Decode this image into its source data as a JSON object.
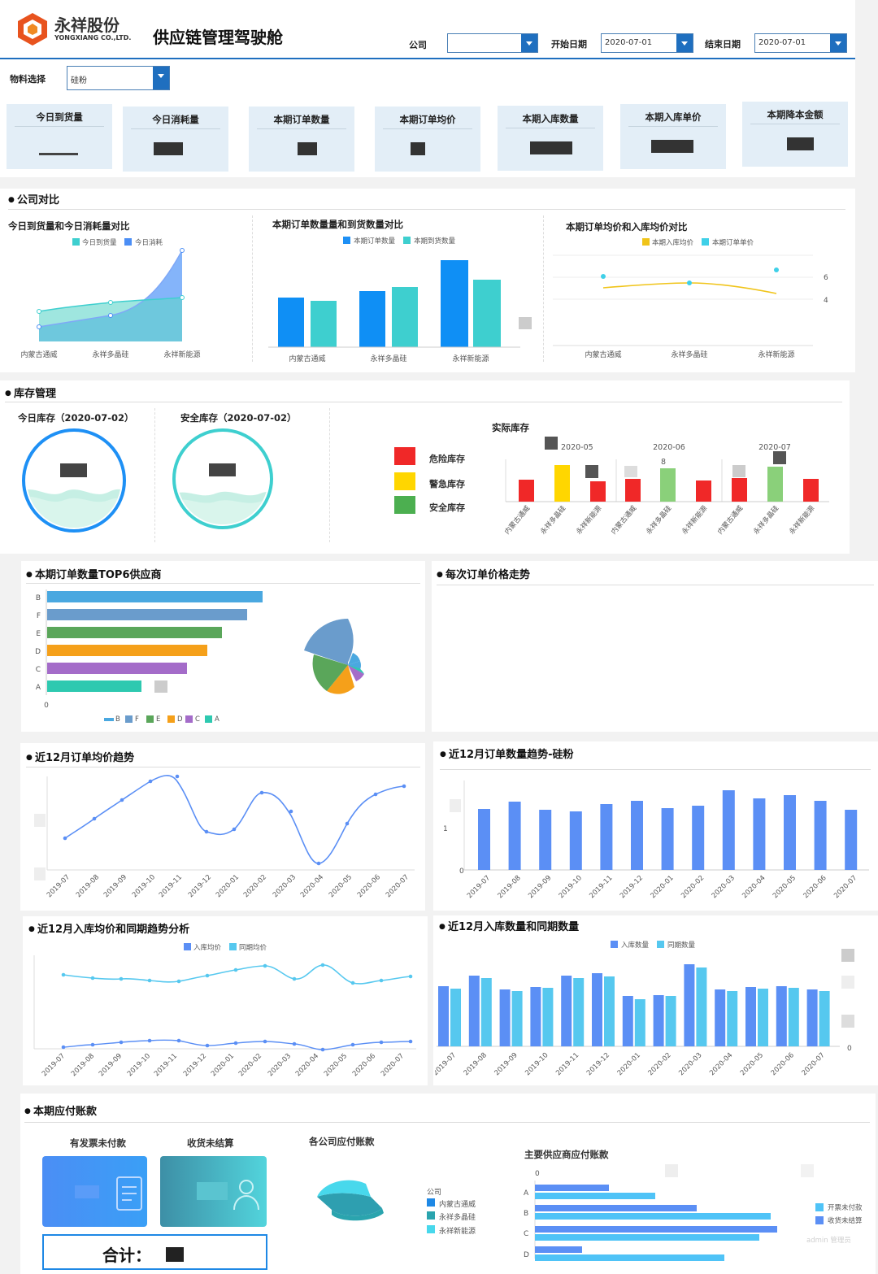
{
  "header": {
    "logo_cn": "永祥股份",
    "logo_en": "YONGXIANG CO.,LTD.",
    "title": "供应链管理驾驶舱",
    "company_label": "公司",
    "company_value": "",
    "start_label": "开始日期",
    "start_value": "2020-07-01",
    "end_label": "结束日期",
    "end_value": "2020-07-01",
    "material_label": "物料选择",
    "material_value": "硅粉"
  },
  "kpis": [
    {
      "label": "今日到货量"
    },
    {
      "label": "今日消耗量"
    },
    {
      "label": "本期订单数量"
    },
    {
      "label": "本期订单均价"
    },
    {
      "label": "本期入库数量"
    },
    {
      "label": "本期入库单价"
    },
    {
      "label": "本期降本金额"
    }
  ],
  "company_compare": {
    "title": "公司对比",
    "c1": {
      "title": "今日到货量和今日消耗量对比",
      "legend": [
        "今日到货量",
        "今日消耗"
      ]
    },
    "c2": {
      "title": "本期订单数量量和到货数量对比",
      "legend": [
        "本期订单数量",
        "本期到货数量"
      ]
    },
    "c3": {
      "title": "本期订单均价和入库均价对比",
      "legend": [
        "本期入库均价",
        "本期订单单价"
      ],
      "right_ticks": [
        "6",
        "4"
      ]
    },
    "companies": [
      "内蒙古通威",
      "永祥多晶硅",
      "永祥新能源"
    ]
  },
  "inventory": {
    "title": "库存管理",
    "today_title": "今日库存（2020-07-02）",
    "safe_title": "安全库存（2020-07-02）",
    "actual_title": "实际库存",
    "legend": [
      "危险库存",
      "警急库存",
      "安全库存"
    ],
    "months": [
      "2020-05",
      "2020-06",
      "2020-07"
    ],
    "bar_label": "8"
  },
  "top6": {
    "title": "本期订单数量TOP6供应商",
    "legend": [
      "B",
      "F",
      "E",
      "D",
      "C",
      "A"
    ],
    "axis": [
      "0"
    ]
  },
  "price_trend": {
    "title": "每次订单价格走势"
  },
  "months12": [
    "2019-07",
    "2019-08",
    "2019-09",
    "2019-10",
    "2019-11",
    "2019-12",
    "2020-01",
    "2020-02",
    "2020-03",
    "2020-04",
    "2020-05",
    "2020-06",
    "2020-07"
  ],
  "avg12": {
    "title": "近12月订单均价趋势"
  },
  "qty12": {
    "title": "近12月订单数量趋势-硅粉",
    "ticks": [
      "1",
      "0"
    ]
  },
  "in_price12": {
    "title": "近12月入库均价和同期趋势分析",
    "legend": [
      "入库均价",
      "同期均价"
    ]
  },
  "in_qty12": {
    "title": "近12月入库数量和同期数量",
    "legend": [
      "入库数量",
      "同期数量"
    ],
    "tick0": "0"
  },
  "payables": {
    "title": "本期应付账款",
    "card1": "有发票未付款",
    "card2": "收货未结算",
    "total_label": "合计：",
    "by_company_title": "各公司应付账款",
    "legend_title": "公司",
    "companies": [
      "内蒙古通威",
      "永祥多晶硅",
      "永祥新能源"
    ],
    "supplier_title": "主要供应商应付账款",
    "supplier_legend": [
      "开票未付款",
      "收货未结算"
    ],
    "suppliers": [
      "A",
      "B",
      "C",
      "D"
    ],
    "axis0": "0",
    "watermark": "admin 管理员"
  },
  "colors": {
    "blue": "#1e88e5",
    "teal": "#3ecfcf",
    "yellow": "#ffd54f",
    "navy": "#1f6fbf"
  }
}
